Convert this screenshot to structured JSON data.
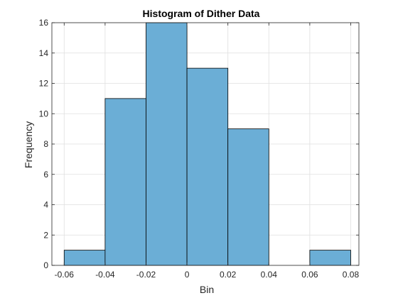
{
  "chart_data": {
    "type": "bar",
    "title": "Histogram of Dither Data",
    "xlabel": "Bin",
    "ylabel": "Frequency",
    "bin_edges": [
      -0.06,
      -0.04,
      -0.02,
      0,
      0.02,
      0.04,
      0.06,
      0.08
    ],
    "values": [
      1,
      11,
      16,
      13,
      9,
      0,
      1
    ],
    "xlim": [
      -0.066,
      0.084
    ],
    "ylim": [
      0,
      16
    ],
    "x_ticks": [
      -0.06,
      -0.04,
      -0.02,
      0,
      0.02,
      0.04,
      0.06,
      0.08
    ],
    "x_tick_labels": [
      "-0.06",
      "-0.04",
      "-0.02",
      "0",
      "0.02",
      "0.04",
      "0.06",
      "0.08"
    ],
    "y_ticks": [
      0,
      2,
      4,
      6,
      8,
      10,
      12,
      14,
      16
    ],
    "y_tick_labels": [
      "0",
      "2",
      "4",
      "6",
      "8",
      "10",
      "12",
      "14",
      "16"
    ],
    "grid": true,
    "bar_color": "#6baed6",
    "bar_edge_color": "#000000"
  }
}
